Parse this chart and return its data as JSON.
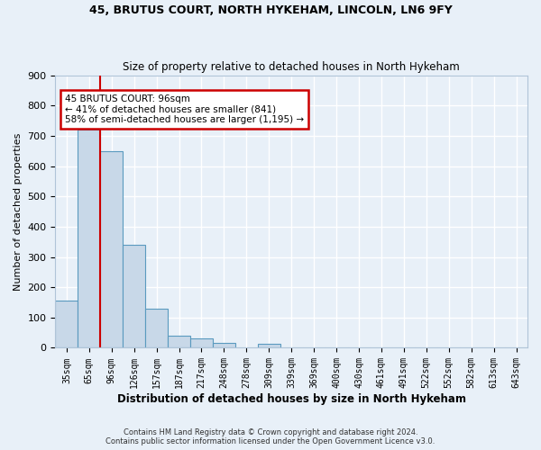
{
  "title1": "45, BRUTUS COURT, NORTH HYKEHAM, LINCOLN, LN6 9FY",
  "title2": "Size of property relative to detached houses in North Hykeham",
  "xlabel": "Distribution of detached houses by size in North Hykeham",
  "ylabel": "Number of detached properties",
  "bar_color": "#c8d8e8",
  "bar_edge_color": "#5a9abf",
  "bg_color": "#e8f0f8",
  "grid_color": "#ffffff",
  "fig_bg_color": "#e8f0f8",
  "categories": [
    "35sqm",
    "65sqm",
    "96sqm",
    "126sqm",
    "157sqm",
    "187sqm",
    "217sqm",
    "248sqm",
    "278sqm",
    "309sqm",
    "339sqm",
    "369sqm",
    "400sqm",
    "430sqm",
    "461sqm",
    "491sqm",
    "522sqm",
    "552sqm",
    "582sqm",
    "613sqm",
    "643sqm"
  ],
  "values": [
    155,
    720,
    650,
    340,
    130,
    40,
    30,
    15,
    0,
    12,
    0,
    0,
    0,
    0,
    0,
    0,
    0,
    0,
    0,
    0,
    0
  ],
  "vline_index": 2,
  "vline_color": "#cc0000",
  "annotation_text": "45 BRUTUS COURT: 96sqm\n← 41% of detached houses are smaller (841)\n58% of semi-detached houses are larger (1,195) →",
  "annotation_box_color": "#cc0000",
  "footer1": "Contains HM Land Registry data © Crown copyright and database right 2024.",
  "footer2": "Contains public sector information licensed under the Open Government Licence v3.0.",
  "ylim": [
    0,
    900
  ],
  "yticks": [
    0,
    100,
    200,
    300,
    400,
    500,
    600,
    700,
    800,
    900
  ]
}
